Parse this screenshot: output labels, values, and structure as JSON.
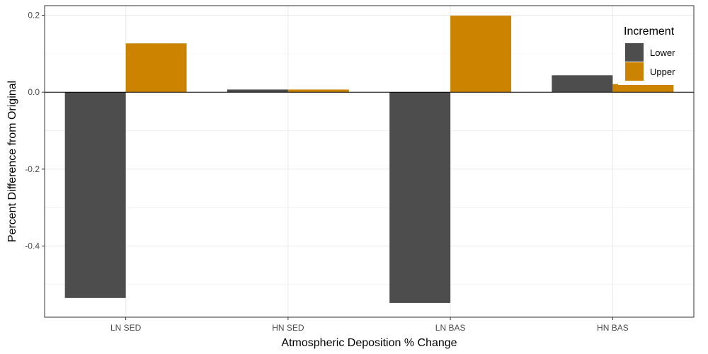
{
  "chart_data": {
    "type": "bar",
    "title": "",
    "xlabel": "Atmospheric Deposition % Change",
    "ylabel": "Percent Difference from Original",
    "categories": [
      "LN SED",
      "HN SED",
      "LN BAS",
      "HN BAS"
    ],
    "series": [
      {
        "name": "Lower",
        "color": "#4d4d4d",
        "values": [
          -0.535,
          0.007,
          -0.548,
          0.044
        ]
      },
      {
        "name": "Upper",
        "color": "#cc8400",
        "values": [
          0.127,
          0.007,
          0.199,
          0.021
        ]
      }
    ],
    "ylim": [
      -0.585,
      0.225
    ],
    "yticks": [
      0.2,
      0.0,
      -0.2,
      -0.4
    ],
    "ytick_labels": [
      "0.2",
      "0.0",
      "-0.2",
      "-0.4"
    ],
    "grid": true,
    "legend": {
      "title": "Increment",
      "position": "top-right"
    }
  }
}
